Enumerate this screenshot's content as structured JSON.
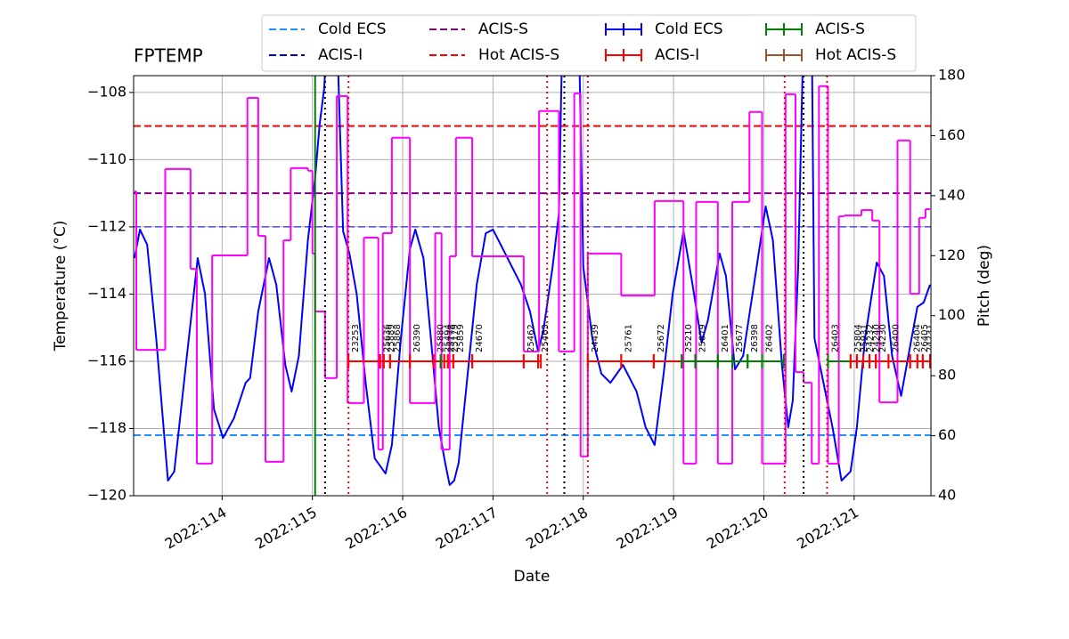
{
  "chart_data": {
    "type": "line",
    "title": "FPTEMP",
    "xlabel": "Date",
    "ylabel": "Temperature (°C)",
    "y2label": "Pitch (deg)",
    "y2color": "magenta",
    "grid": true,
    "legend": "upper center",
    "xlim": [
      113.02,
      121.85
    ],
    "xticks": [
      {
        "value": 114,
        "label": "2022:114"
      },
      {
        "value": 115,
        "label": "2022:115"
      },
      {
        "value": 116,
        "label": "2022:116"
      },
      {
        "value": 117,
        "label": "2022:117"
      },
      {
        "value": 118,
        "label": "2022:118"
      },
      {
        "value": 119,
        "label": "2022:119"
      },
      {
        "value": 120,
        "label": "2022:120"
      },
      {
        "value": 121,
        "label": "2022:121"
      }
    ],
    "ylim": [
      -120,
      -107.5
    ],
    "yticks": [
      {
        "value": -120,
        "label": "−120"
      },
      {
        "value": -118,
        "label": "−118"
      },
      {
        "value": -116,
        "label": "−116"
      },
      {
        "value": -114,
        "label": "−114"
      },
      {
        "value": -112,
        "label": "−112"
      },
      {
        "value": -110,
        "label": "−110"
      },
      {
        "value": -108,
        "label": "−108"
      }
    ],
    "y2lim": [
      40,
      180
    ],
    "y2ticks": [
      40,
      60,
      80,
      100,
      120,
      140,
      160,
      180
    ],
    "series": [
      {
        "color": "blue",
        "x": [
          113.03,
          113.09,
          113.17,
          113.27,
          113.4,
          113.47,
          113.61,
          113.73,
          113.81,
          113.91,
          114.01,
          114.13,
          114.26,
          114.31,
          114.4,
          114.52,
          114.6,
          114.7,
          114.77,
          114.85,
          114.95,
          115.03,
          115.08,
          115.13,
          115.17,
          115.27,
          115.34,
          115.41,
          115.49,
          115.59,
          115.69,
          115.76,
          115.81,
          115.88,
          115.98,
          116.08,
          116.14,
          116.23,
          116.33,
          116.4,
          116.47,
          116.52,
          116.57,
          116.62,
          116.72,
          116.82,
          116.92,
          117.0,
          117.11,
          117.31,
          117.41,
          117.5,
          117.56,
          117.66,
          117.73,
          117.77,
          117.95,
          118.0,
          118.1,
          118.2,
          118.3,
          118.44,
          118.59,
          118.69,
          118.79,
          118.89,
          118.99,
          119.11,
          119.21,
          119.31,
          119.38,
          119.51,
          119.58,
          119.68,
          119.77,
          119.92,
          120.02,
          120.1,
          120.2,
          120.27,
          120.32,
          120.38,
          120.44,
          120.53,
          120.56,
          120.66,
          120.76,
          120.86,
          120.96,
          121.03,
          121.12,
          121.25,
          121.33,
          121.42,
          121.52,
          121.6,
          121.7,
          121.77,
          121.84
        ],
        "values": [
          -112.93,
          -112.08,
          -112.53,
          -115.31,
          -119.55,
          -119.28,
          -115.84,
          -112.93,
          -113.99,
          -117.43,
          -118.28,
          -117.7,
          -116.64,
          -116.5,
          -114.52,
          -112.93,
          -113.72,
          -116.11,
          -116.9,
          -115.84,
          -112.4,
          -110.54,
          -108.95,
          -107.89,
          -106,
          -106,
          -112.13,
          -112.79,
          -113.99,
          -116.64,
          -118.89,
          -119.15,
          -119.34,
          -118.49,
          -115.31,
          -112.66,
          -112.08,
          -112.93,
          -115.84,
          -117.96,
          -119.02,
          -119.68,
          -119.55,
          -119.02,
          -116.37,
          -113.72,
          -112.19,
          -112.08,
          -112.66,
          -113.72,
          -114.52,
          -115.71,
          -115.05,
          -113.19,
          -111.6,
          -106,
          -106,
          -113.19,
          -115.31,
          -116.37,
          -116.64,
          -116.11,
          -116.9,
          -117.96,
          -118.49,
          -116.37,
          -113.99,
          -112.13,
          -113.72,
          -115.44,
          -114.78,
          -112.79,
          -113.46,
          -116.24,
          -115.84,
          -113.19,
          -111.39,
          -112.4,
          -116.11,
          -117.96,
          -117.17,
          -113.19,
          -106,
          -106,
          -115.31,
          -116.64,
          -117.96,
          -119.55,
          -119.28,
          -117.96,
          -115.31,
          -113.06,
          -113.46,
          -115.84,
          -117.03,
          -115.84,
          -114.38,
          -114.25,
          -113.72
        ]
      },
      {
        "color": "magenta",
        "axis": "y2",
        "drawstyle": "steps-post",
        "x": [
          113.03,
          113.05,
          113.37,
          113.65,
          113.72,
          113.89,
          114.28,
          114.4,
          114.48,
          114.68,
          114.76,
          114.95,
          115.0,
          115.03,
          115.14,
          115.27,
          115.39,
          115.57,
          115.73,
          115.78,
          115.88,
          116.08,
          116.36,
          116.43,
          116.52,
          116.59,
          116.77,
          117.34,
          117.51,
          117.73,
          117.9,
          117.97,
          118.05,
          118.42,
          118.79,
          119.11,
          119.25,
          119.49,
          119.65,
          119.84,
          119.98,
          120.24,
          120.35,
          120.44,
          120.53,
          120.61,
          120.71,
          120.83,
          120.89,
          121.08,
          121.2,
          121.28,
          121.48,
          121.62,
          121.72,
          121.79,
          121.84
        ],
        "values": [
          141.4,
          88.6,
          148.9,
          115.6,
          50.7,
          120.1,
          172.6,
          126.6,
          51.3,
          125.1,
          149.2,
          148.3,
          120.7,
          101.4,
          79.2,
          173.2,
          70.9,
          126.0,
          55.4,
          127.5,
          159.3,
          70.9,
          127.5,
          55.4,
          119.8,
          159.3,
          119.8,
          88.1,
          168.2,
          88.1,
          174.1,
          53.1,
          120.7,
          106.7,
          138.2,
          50.7,
          137.9,
          50.7,
          137.9,
          167.9,
          50.7,
          173.8,
          81.2,
          77.7,
          50.7,
          176.5,
          50.7,
          133.1,
          133.4,
          135.2,
          131.7,
          71.1,
          158.4,
          107.3,
          132.6,
          135.5,
          135.5
        ]
      }
    ],
    "limits": [
      {
        "name": "Cold ECS",
        "value": -118.2,
        "color": "#1e90ff"
      },
      {
        "name": "ACIS-I",
        "value": -112,
        "color": "#0000cd"
      },
      {
        "name": "ACIS-S",
        "value": -111,
        "color": "purple"
      },
      {
        "name": "Hot ACIS-S",
        "value": -109,
        "color": "red"
      }
    ],
    "instruments": [
      {
        "name": "Cold ECS",
        "color": "blue"
      },
      {
        "name": "ACIS-I",
        "color": "red"
      },
      {
        "name": "ACIS-S",
        "color": "green"
      },
      {
        "name": "Hot ACIS-S",
        "color": "sienna"
      }
    ],
    "obsids": {
      "y": -116,
      "items": [
        {
          "label": "23253",
          "start": 115.4,
          "stop": 115.75,
          "instrument": "ACIS-I"
        },
        {
          "label": "25636",
          "start": 115.75,
          "stop": 115.79,
          "instrument": "ACIS-I"
        },
        {
          "label": "25889",
          "start": 115.79,
          "stop": 115.86,
          "instrument": "ACIS-I"
        },
        {
          "label": "25868",
          "start": 115.86,
          "stop": 116.08,
          "instrument": "ACIS-I"
        },
        {
          "label": "26390",
          "start": 116.08,
          "stop": 116.34,
          "instrument": "ACIS-I"
        },
        {
          "label": "25880",
          "start": 116.34,
          "stop": 116.42,
          "instrument": "ACIS-I"
        },
        {
          "label": "25494",
          "start": 116.42,
          "stop": 116.46,
          "instrument": "ACIS-S"
        },
        {
          "label": "25178",
          "start": 116.46,
          "stop": 116.5,
          "instrument": "ACIS-I"
        },
        {
          "label": "25179",
          "start": 116.5,
          "stop": 116.56,
          "instrument": "ACIS-I"
        },
        {
          "label": "25859",
          "start": 116.56,
          "stop": 116.77,
          "instrument": "ACIS-I"
        },
        {
          "label": "24670",
          "start": 116.77,
          "stop": 117.34,
          "instrument": "ACIS-I"
        },
        {
          "label": "25462",
          "start": 117.34,
          "stop": 117.5,
          "instrument": "ACIS-I"
        },
        {
          "label": "25463",
          "start": 117.5,
          "stop": 117.53,
          "instrument": "ACIS-I"
        },
        {
          "label": "24439",
          "start": 118.05,
          "stop": 118.42,
          "instrument": "ACIS-I"
        },
        {
          "label": "25761",
          "start": 118.42,
          "stop": 118.78,
          "instrument": "ACIS-I"
        },
        {
          "label": "25672",
          "start": 118.78,
          "stop": 119.09,
          "instrument": "ACIS-I"
        },
        {
          "label": "25210",
          "start": 119.09,
          "stop": 119.24,
          "instrument": "ACIS-S"
        },
        {
          "label": "25679",
          "start": 119.24,
          "stop": 119.49,
          "instrument": "ACIS-S"
        },
        {
          "label": "26401",
          "start": 119.49,
          "stop": 119.65,
          "instrument": "ACIS-S"
        },
        {
          "label": "25677",
          "start": 119.65,
          "stop": 119.82,
          "instrument": "ACIS-S"
        },
        {
          "label": "26398",
          "start": 119.82,
          "stop": 119.98,
          "instrument": "ACIS-S"
        },
        {
          "label": "26402",
          "start": 119.98,
          "stop": 120.22,
          "instrument": "ACIS-S"
        },
        {
          "label": "26403",
          "start": 120.71,
          "stop": 120.96,
          "instrument": "ACIS-S"
        },
        {
          "label": "25804",
          "start": 120.96,
          "stop": 121.03,
          "instrument": "ACIS-I"
        },
        {
          "label": "25931",
          "start": 121.03,
          "stop": 121.1,
          "instrument": "ACIS-I"
        },
        {
          "label": "24232",
          "start": 121.1,
          "stop": 121.17,
          "instrument": "ACIS-I"
        },
        {
          "label": "24240",
          "start": 121.17,
          "stop": 121.24,
          "instrument": "ACIS-I"
        },
        {
          "label": "24230",
          "start": 121.24,
          "stop": 121.38,
          "instrument": "ACIS-I"
        },
        {
          "label": "26400",
          "start": 121.38,
          "stop": 121.62,
          "instrument": "ACIS-I"
        },
        {
          "label": "26404",
          "start": 121.62,
          "stop": 121.7,
          "instrument": "ACIS-I"
        },
        {
          "label": "26405",
          "start": 121.7,
          "stop": 121.76,
          "instrument": "ACIS-I"
        },
        {
          "label": "24231",
          "start": 121.76,
          "stop": 121.84,
          "instrument": "ACIS-I"
        }
      ]
    },
    "vlines": [
      {
        "x": 115.03,
        "color": "green",
        "style": "solid"
      },
      {
        "x": 115.14,
        "color": "black",
        "style": "dotted"
      },
      {
        "x": 115.4,
        "color": "red",
        "style": "dotted"
      },
      {
        "x": 117.6,
        "color": "red",
        "style": "dotted"
      },
      {
        "x": 117.79,
        "color": "black",
        "style": "dotted"
      },
      {
        "x": 118.05,
        "color": "red",
        "style": "dotted"
      },
      {
        "x": 120.23,
        "color": "red",
        "style": "dotted"
      },
      {
        "x": 120.44,
        "color": "black",
        "style": "dotted"
      },
      {
        "x": 120.7,
        "color": "red",
        "style": "dotted"
      }
    ]
  }
}
